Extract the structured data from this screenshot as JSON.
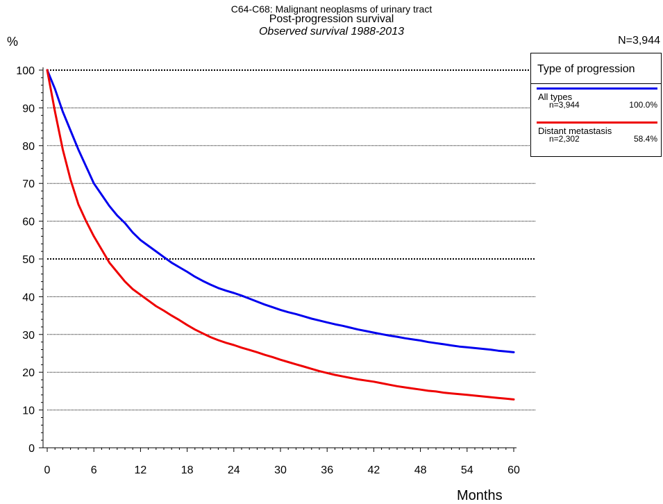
{
  "title": {
    "line1": "C64-C68: Malignant neoplasms of urinary tract",
    "line2": "Post-progression survival",
    "line3": "Observed survival 1988-2013"
  },
  "total_n": "N=3,944",
  "legend": {
    "title": "Type of progression",
    "items": [
      {
        "name": "All types",
        "n": "n=3,944",
        "pct": "100.0%",
        "color": "#0000ee"
      },
      {
        "name": "Distant metastasis",
        "n": "n=2,302",
        "pct": "58.4%",
        "color": "#ee0000"
      }
    ]
  },
  "chart_data": {
    "type": "line",
    "title": "Post-progression survival",
    "xlabel": "Months",
    "ylabel": "%",
    "xlim": [
      0,
      60
    ],
    "ylim": [
      0,
      100
    ],
    "xticks": [
      0,
      6,
      12,
      18,
      24,
      30,
      36,
      42,
      48,
      54,
      60
    ],
    "yticks": [
      0,
      10,
      20,
      30,
      40,
      50,
      60,
      70,
      80,
      90,
      100
    ],
    "grid": true,
    "legend_position": "top-right",
    "x": [
      0,
      1,
      2,
      3,
      4,
      5,
      6,
      7,
      8,
      9,
      10,
      11,
      12,
      13,
      14,
      15,
      16,
      17,
      18,
      19,
      20,
      21,
      22,
      23,
      24,
      25,
      26,
      27,
      28,
      29,
      30,
      31,
      32,
      33,
      34,
      35,
      36,
      37,
      38,
      39,
      40,
      41,
      42,
      43,
      44,
      45,
      46,
      47,
      48,
      49,
      50,
      51,
      52,
      53,
      54,
      55,
      56,
      57,
      58,
      59,
      60
    ],
    "series": [
      {
        "name": "All types",
        "color": "#0000ee",
        "values": [
          100,
          95,
          89,
          84,
          79,
          74.5,
          70,
          67,
          64,
          61.5,
          59.5,
          57,
          55,
          53.5,
          52,
          50.5,
          49,
          47.8,
          46.6,
          45.3,
          44.2,
          43.2,
          42.3,
          41.6,
          41,
          40.3,
          39.5,
          38.7,
          37.9,
          37.2,
          36.5,
          35.9,
          35.4,
          34.8,
          34.2,
          33.7,
          33.2,
          32.7,
          32.3,
          31.8,
          31.3,
          30.9,
          30.5,
          30.1,
          29.7,
          29.4,
          29.0,
          28.7,
          28.4,
          28.0,
          27.7,
          27.4,
          27.1,
          26.8,
          26.6,
          26.4,
          26.2,
          26.0,
          25.7,
          25.5,
          25.3
        ]
      },
      {
        "name": "Distant metastasis",
        "color": "#ee0000",
        "values": [
          100,
          89,
          79,
          71,
          64.5,
          60,
          56,
          52.5,
          49,
          46.5,
          44,
          42,
          40.5,
          39,
          37.5,
          36.3,
          35.0,
          33.8,
          32.5,
          31.3,
          30.3,
          29.3,
          28.5,
          27.8,
          27.2,
          26.5,
          25.9,
          25.3,
          24.6,
          24.0,
          23.3,
          22.7,
          22.1,
          21.5,
          20.9,
          20.3,
          19.8,
          19.3,
          18.9,
          18.5,
          18.1,
          17.8,
          17.5,
          17.1,
          16.7,
          16.3,
          16.0,
          15.7,
          15.4,
          15.1,
          14.9,
          14.6,
          14.4,
          14.2,
          14.0,
          13.8,
          13.6,
          13.4,
          13.2,
          13.0,
          12.8
        ]
      }
    ]
  }
}
